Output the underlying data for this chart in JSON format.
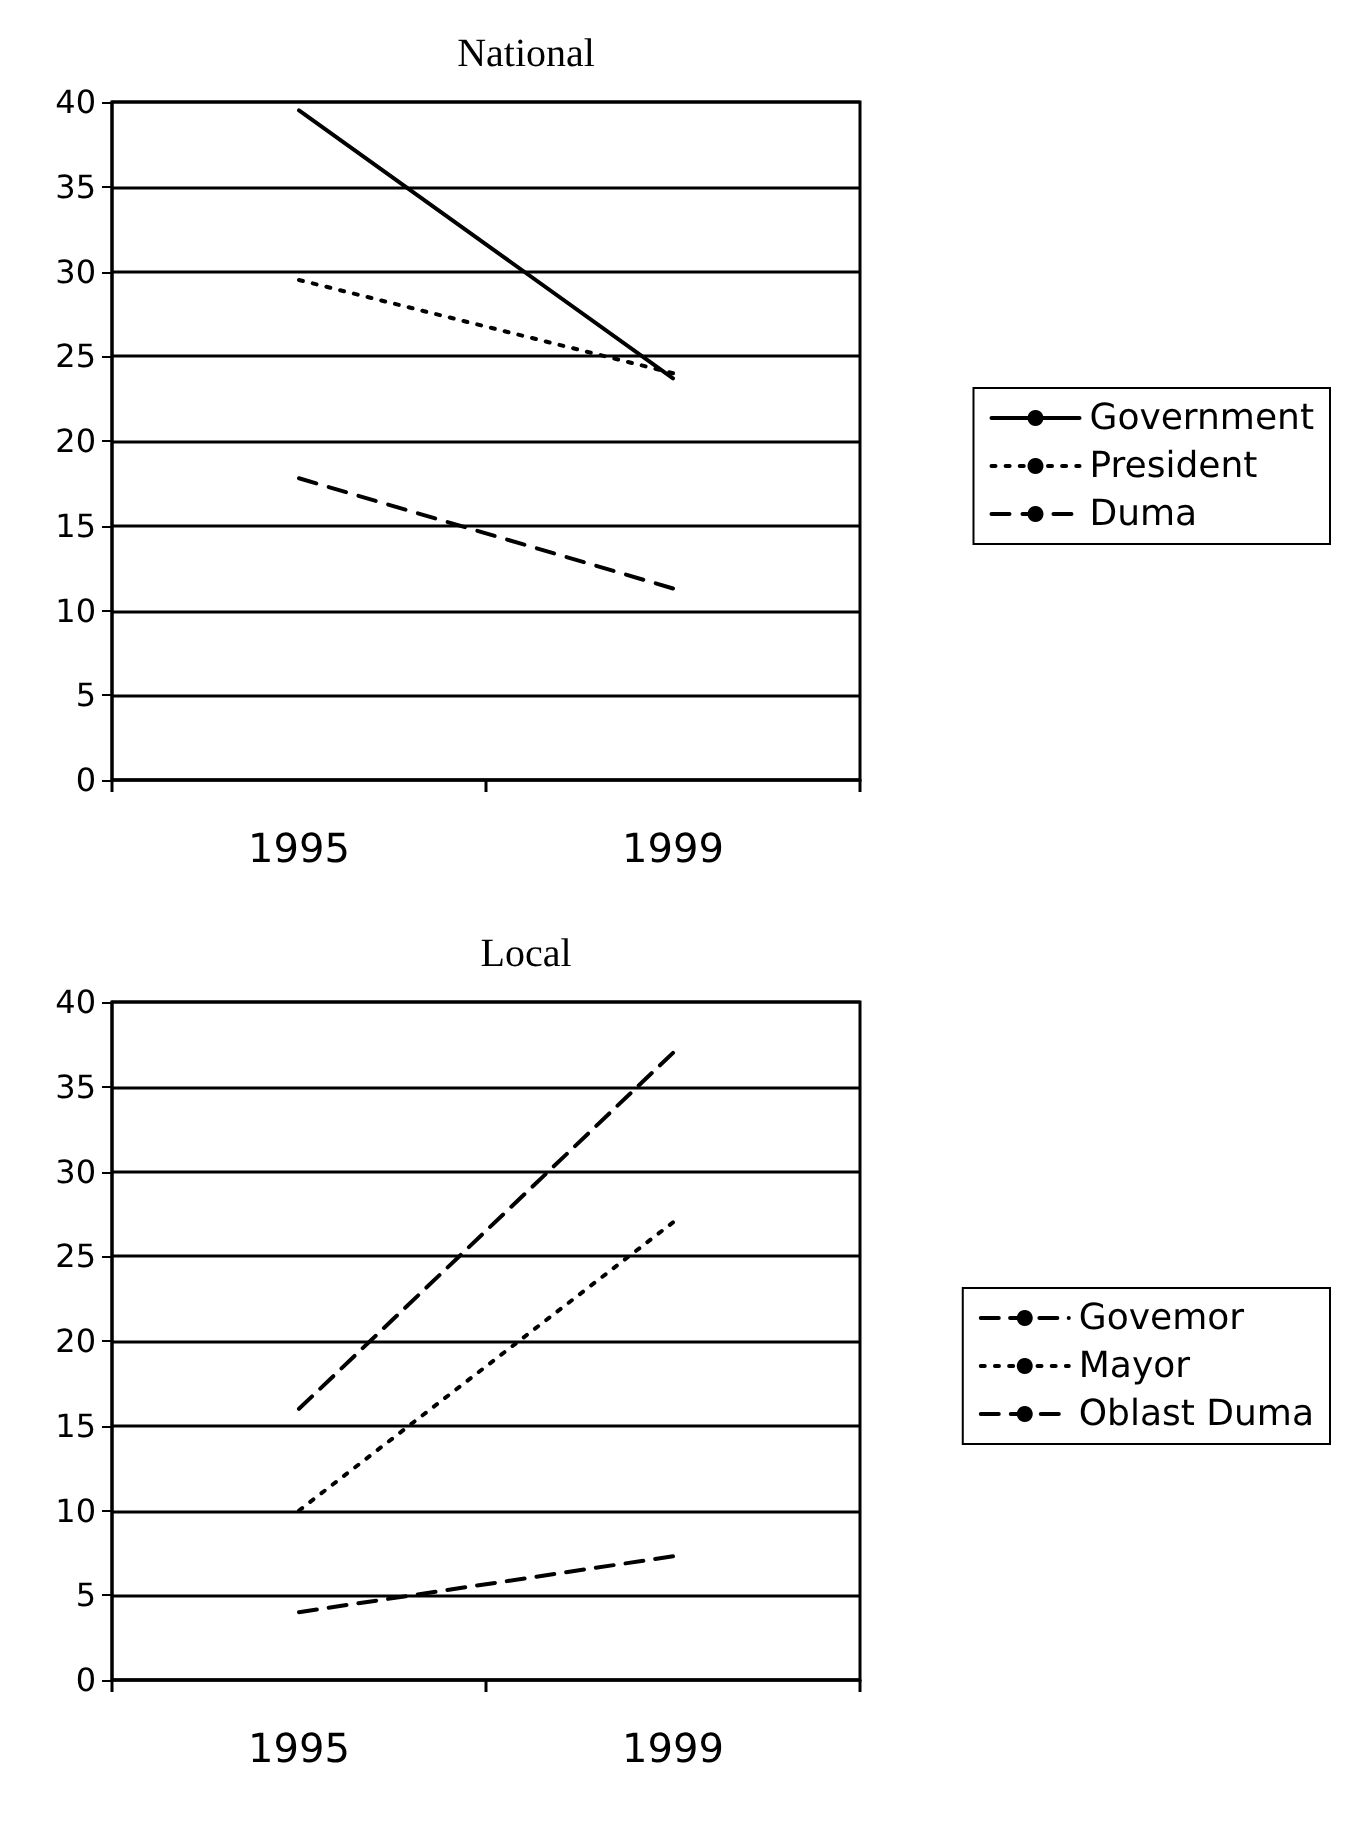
{
  "chart_data": [
    {
      "type": "line",
      "title": "National",
      "categories": [
        "1995",
        "1999"
      ],
      "series": [
        {
          "name": "Government",
          "color": "#000000",
          "line_style": "solid",
          "values": [
            39.5,
            23.7
          ]
        },
        {
          "name": "President",
          "color": "#000000",
          "line_style": "dotted",
          "values": [
            29.5,
            24
          ]
        },
        {
          "name": "Duma",
          "color": "#000000",
          "line_style": "dashed",
          "values": [
            17.8,
            11.3
          ]
        }
      ],
      "ylim": [
        0,
        40
      ],
      "yticks": [
        0,
        5,
        10,
        15,
        20,
        25,
        30,
        35,
        40
      ],
      "grid": "y",
      "legend": "right",
      "marker": "none"
    },
    {
      "type": "line",
      "title": "Local",
      "categories": [
        "1995",
        "1999"
      ],
      "series": [
        {
          "name": "Govemor",
          "color": "#000000",
          "line_style": "dashed",
          "values": [
            16,
            37
          ]
        },
        {
          "name": "Mayor",
          "color": "#000000",
          "line_style": "dotted",
          "values": [
            10,
            27
          ]
        },
        {
          "name": "Oblast Duma",
          "color": "#000000",
          "line_style": "dashed",
          "values": [
            4,
            7.3
          ]
        }
      ],
      "ylim": [
        0,
        40
      ],
      "yticks": [
        0,
        5,
        10,
        15,
        20,
        25,
        30,
        35,
        40
      ],
      "grid": "y",
      "legend": "right",
      "marker": "none"
    }
  ]
}
